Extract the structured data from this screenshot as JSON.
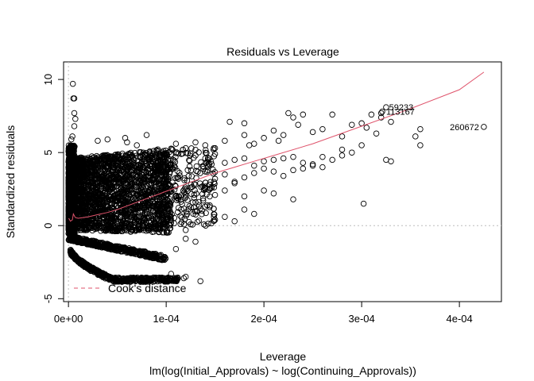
{
  "chart_data": {
    "type": "scatter",
    "title": "Residuals vs Leverage",
    "xlabel": "Leverage",
    "subtitle": "lm(log(Initial_Approvals) ~ log(Continuing_Approvals))",
    "ylabel": "Standardized residuals",
    "xlim": [
      -5e-06,
      0.000443
    ],
    "ylim": [
      -5.2,
      11.2
    ],
    "x_ticks": [
      0,
      0.0001,
      0.0002,
      0.0003,
      0.0004
    ],
    "x_tick_labels": [
      "0e+00",
      "1e-04",
      "2e-04",
      "3e-04",
      "4e-04"
    ],
    "y_ticks": [
      -5,
      0,
      5,
      10
    ],
    "y_tick_labels": [
      "-5",
      "0",
      "5",
      "10"
    ],
    "reference_lines": {
      "horizontal_y": 0,
      "vertical_x": 0,
      "style": "dotted",
      "color": "#bebebe"
    },
    "smooth_line": {
      "color": "#df536b",
      "x": [
        3e-07,
        2e-06,
        4e-06,
        5e-06,
        7e-06,
        1e-05,
        1.5e-05,
        2e-05,
        3e-05,
        4e-05,
        5e-05,
        7e-05,
        9e-05,
        0.00011,
        0.00013,
        0.00015,
        0.00017,
        0.00019,
        0.00021,
        0.00025,
        0.0003,
        0.00035,
        0.0004,
        0.000425
      ],
      "y": [
        0.5,
        0.3,
        0.4,
        0.8,
        0.55,
        0.5,
        0.55,
        0.6,
        0.75,
        0.9,
        1.1,
        1.6,
        2.1,
        2.6,
        3.1,
        3.6,
        4.0,
        4.4,
        4.8,
        5.6,
        6.8,
        8.0,
        9.3,
        10.5
      ]
    },
    "annotated_points": [
      {
        "label": "59233",
        "x": 0.000324,
        "y": 8.1
      },
      {
        "label": "113167",
        "x": 0.000321,
        "y": 7.8
      },
      {
        "label": "260672",
        "x": 0.000425,
        "y": 6.75
      }
    ],
    "scatter_sparse": [
      [
        4.5e-06,
        9.7
      ],
      [
        5e-06,
        8.7
      ],
      [
        6e-06,
        8.7
      ],
      [
        6e-06,
        7.7
      ],
      [
        7e-06,
        7.3
      ],
      [
        6e-06,
        6.8
      ],
      [
        4e-06,
        6.1
      ],
      [
        3e-06,
        5.9
      ],
      [
        3e-05,
        5.8
      ],
      [
        4e-05,
        5.9
      ],
      [
        6e-05,
        5.7
      ],
      [
        5.8e-05,
        6.0
      ],
      [
        8e-05,
        6.2
      ],
      [
        7e-05,
        5.5
      ],
      [
        0.00011,
        5.6
      ],
      [
        0.00012,
        5.3
      ],
      [
        0.00013,
        5.7
      ],
      [
        0.00014,
        5.5
      ],
      [
        0.00015,
        5.3
      ],
      [
        0.00016,
        5.8
      ],
      [
        0.000165,
        7.1
      ],
      [
        0.00018,
        6.2
      ],
      [
        0.00019,
        5.6
      ],
      [
        0.00018,
        7.0
      ],
      [
        0.000185,
        5.5
      ],
      [
        0.0002,
        6.0
      ],
      [
        0.00021,
        6.5
      ],
      [
        0.000215,
        5.8
      ],
      [
        0.00022,
        6.2
      ],
      [
        0.000225,
        7.7
      ],
      [
        0.00023,
        7.4
      ],
      [
        0.000235,
        6.9
      ],
      [
        0.00024,
        7.6
      ],
      [
        0.00025,
        6.4
      ],
      [
        0.00026,
        6.6
      ],
      [
        0.00027,
        7.6
      ],
      [
        0.00028,
        6.1
      ],
      [
        0.00028,
        5.2
      ],
      [
        0.00029,
        6.9
      ],
      [
        0.0003,
        7.0
      ],
      [
        0.00031,
        7.6
      ],
      [
        0.000305,
        6.7
      ],
      [
        0.00032,
        7.4
      ],
      [
        0.00032,
        7.7
      ],
      [
        0.000315,
        6.3
      ],
      [
        0.00033,
        7.1
      ],
      [
        0.000325,
        8.1
      ],
      [
        0.000321,
        7.8
      ],
      [
        0.00036,
        6.6
      ],
      [
        0.00036,
        5.5
      ],
      [
        0.000355,
        6.1
      ],
      [
        0.000425,
        6.75
      ],
      [
        0.00013,
        4.8
      ],
      [
        0.00014,
        4.6
      ],
      [
        0.00015,
        4.9
      ],
      [
        0.00016,
        4.3
      ],
      [
        0.00017,
        4.5
      ],
      [
        0.00018,
        4.6
      ],
      [
        0.00019,
        4.1
      ],
      [
        0.0002,
        4.4
      ],
      [
        0.00021,
        4.5
      ],
      [
        0.00022,
        4.6
      ],
      [
        0.00023,
        4.7
      ],
      [
        0.00024,
        4.3
      ],
      [
        0.00025,
        4.2
      ],
      [
        0.00026,
        4.7
      ],
      [
        0.00027,
        4.5
      ],
      [
        0.00028,
        4.8
      ],
      [
        0.00029,
        5.0
      ],
      [
        0.0003,
        5.5
      ],
      [
        0.00025,
        4.1
      ],
      [
        0.00014,
        3.7
      ],
      [
        0.00015,
        3.2
      ],
      [
        0.00016,
        3.5
      ],
      [
        0.00017,
        3.0
      ],
      [
        0.00018,
        3.3
      ],
      [
        0.00019,
        3.6
      ],
      [
        0.0002,
        3.9
      ],
      [
        0.00021,
        3.7
      ],
      [
        0.00022,
        3.4
      ],
      [
        0.00023,
        3.8
      ],
      [
        0.00024,
        3.9
      ],
      [
        0.00026,
        4.0
      ],
      [
        0.00013,
        2.8
      ],
      [
        0.00014,
        2.5
      ],
      [
        0.00015,
        2.1
      ],
      [
        0.00016,
        2.4
      ],
      [
        0.00017,
        2.9
      ],
      [
        0.00018,
        2.0
      ],
      [
        0.0002,
        2.4
      ],
      [
        0.00021,
        2.2
      ],
      [
        0.00023,
        1.8
      ],
      [
        0.000325,
        4.5
      ],
      [
        0.00033,
        4.4
      ],
      [
        0.000302,
        1.5
      ],
      [
        0.00013,
        1.6
      ],
      [
        0.00014,
        1.3
      ],
      [
        0.00015,
        0.4
      ],
      [
        0.00016,
        0.6
      ],
      [
        0.00017,
        0.3
      ],
      [
        0.00018,
        1.1
      ],
      [
        0.00019,
        0.8
      ],
      [
        0.00012,
        -0.9
      ],
      [
        0.00013,
        -1.1
      ],
      [
        0.000135,
        -3.8
      ],
      [
        0.00012,
        -3.5
      ],
      [
        0.000118,
        -3.6
      ],
      [
        0.00011,
        -1.6
      ],
      [
        0.000105,
        -3.3
      ],
      [
        0.00012,
        -0.3
      ]
    ]
  }
}
